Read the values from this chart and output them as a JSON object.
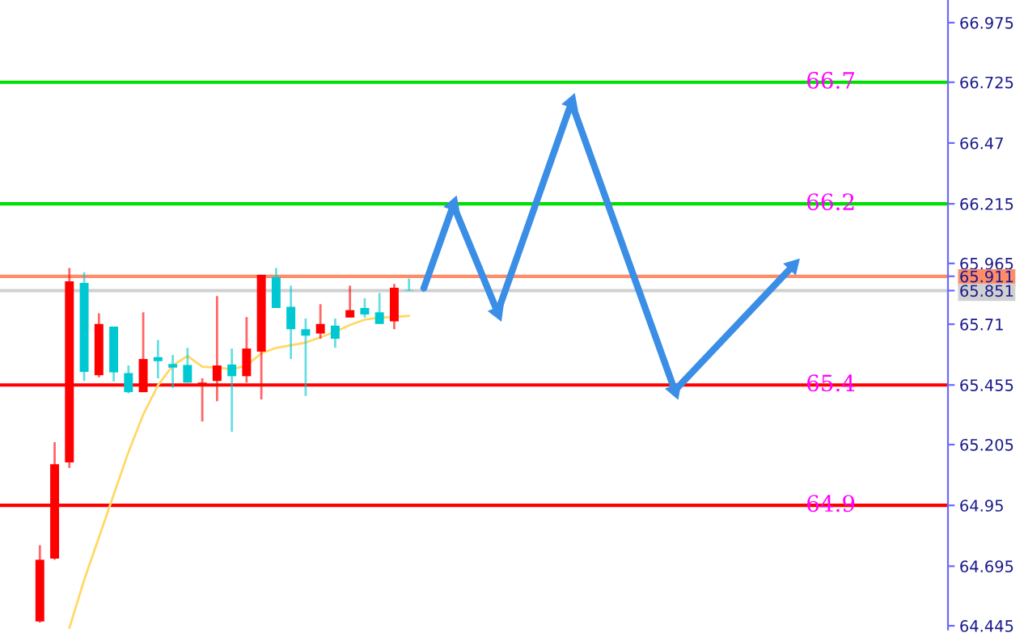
{
  "chart_data": {
    "type": "candlestick",
    "categories": [
      null,
      null,
      null,
      null,
      null,
      null,
      null,
      null,
      null,
      null,
      null,
      null,
      null,
      null,
      null,
      null,
      null,
      null,
      null,
      null,
      null,
      null,
      null,
      null,
      null,
      null,
      null,
      null,
      null,
      null,
      null,
      null,
      null,
      null,
      null,
      null,
      null,
      null,
      null,
      null,
      null,
      null,
      null,
      null,
      null,
      null,
      null,
      null,
      null,
      null,
      null,
      null,
      null,
      null,
      null,
      null,
      null,
      null,
      null,
      null,
      null,
      null,
      null
    ],
    "ohlc": [
      null,
      [
        64.463,
        64.783,
        64.458,
        64.722
      ],
      [
        64.727,
        65.215,
        64.722,
        65.123
      ],
      [
        65.13,
        65.946,
        65.107,
        65.89
      ],
      [
        65.883,
        65.928,
        65.472,
        65.51
      ],
      [
        65.496,
        65.756,
        65.487,
        65.711
      ],
      [
        65.7,
        65.7,
        65.47,
        65.508
      ],
      [
        65.505,
        65.537,
        65.42,
        65.425
      ],
      [
        65.425,
        65.76,
        65.425,
        65.564
      ],
      [
        65.572,
        65.644,
        65.483,
        65.555
      ],
      [
        65.543,
        65.581,
        65.443,
        65.528
      ],
      [
        65.539,
        65.611,
        65.465,
        65.465
      ],
      [
        65.456,
        65.483,
        65.302,
        65.465
      ],
      [
        65.472,
        65.828,
        65.387,
        65.537
      ],
      [
        65.541,
        65.608,
        65.259,
        65.492
      ],
      [
        65.492,
        65.74,
        65.465,
        65.608
      ],
      [
        65.595,
        65.917,
        65.394,
        65.917
      ],
      [
        65.908,
        65.946,
        65.778,
        65.778
      ],
      [
        65.783,
        65.872,
        65.564,
        65.689
      ],
      [
        65.689,
        65.734,
        65.409,
        65.662
      ],
      [
        65.671,
        65.794,
        65.649,
        65.711
      ],
      [
        65.704,
        65.734,
        65.611,
        65.649
      ],
      [
        65.738,
        65.872,
        65.738,
        65.769
      ],
      [
        65.778,
        65.819,
        65.738,
        65.751
      ],
      [
        65.76,
        65.841,
        65.711,
        65.711
      ],
      [
        65.722,
        65.879,
        65.689,
        65.863
      ],
      [
        65.853,
        65.901,
        65.851,
        65.851
      ],
      null,
      null,
      null,
      null,
      null,
      null,
      null,
      null,
      null,
      null,
      null,
      null,
      null,
      null,
      null,
      null,
      null,
      null,
      null,
      null,
      null,
      null,
      null,
      null,
      null,
      null,
      null,
      null,
      null,
      null,
      null,
      null,
      null,
      null,
      null,
      null
    ],
    "colors": [
      null,
      "#ff0000",
      "#ff0000",
      "#ff0000",
      "#00c8d2",
      "#ff0000",
      "#00c8d2",
      "#00c8d2",
      "#ff0000",
      "#00c8d2",
      "#00c8d2",
      "#00c8d2",
      "#ff0000",
      "#ff0000",
      "#00c8d2",
      "#ff0000",
      "#ff0000",
      "#00c8d2",
      "#00c8d2",
      "#00c8d2",
      "#ff0000",
      "#00c8d2",
      "#ff0000",
      "#00c8d2",
      "#00c8d2",
      "#ff0000",
      "#00c8d2",
      null,
      null,
      null,
      null,
      null,
      null,
      null,
      null,
      null,
      null,
      null,
      null,
      null,
      null,
      null,
      null,
      null,
      null,
      null,
      null,
      null,
      null,
      null,
      null,
      null,
      null,
      null,
      null,
      null,
      null,
      null,
      null,
      null,
      null,
      null,
      null
    ],
    "series": [
      {
        "type": "line",
        "color": "#ffd966",
        "values": [
          null,
          null,
          null,
          64.436,
          64.637,
          64.816,
          64.995,
          65.174,
          65.331,
          65.454,
          65.537,
          65.577,
          65.532,
          65.528,
          65.521,
          65.537,
          65.588,
          65.611,
          65.622,
          65.633,
          65.655,
          65.678,
          65.707,
          65.729,
          65.738,
          65.74,
          65.745,
          null,
          null,
          null,
          null,
          null,
          null,
          null,
          null,
          null,
          null,
          null,
          null,
          null,
          null,
          null,
          null,
          null,
          null,
          null,
          null,
          null,
          null,
          null,
          null,
          null,
          null,
          null,
          null,
          null,
          null,
          null,
          null,
          null,
          null,
          null,
          null
        ]
      },
      {
        "type": "line",
        "color": "#3a8ee6",
        "marker": "triangle",
        "values": [
          null,
          null,
          null,
          null,
          null,
          null,
          null,
          null,
          null,
          null,
          null,
          null,
          null,
          null,
          null,
          null,
          null,
          null,
          null,
          null,
          null,
          null,
          null,
          null,
          null,
          null,
          null,
          65.861,
          null,
          66.21,
          null,
          null,
          65.76,
          null,
          null,
          null,
          null,
          66.64,
          null,
          null,
          null,
          null,
          null,
          null,
          65.432,
          null,
          null,
          null,
          null,
          null,
          null,
          null,
          65.955,
          null,
          null,
          null,
          null,
          null,
          null,
          null,
          null,
          null,
          null
        ]
      }
    ],
    "ylim": [
      64.43,
      67.07
    ],
    "yticks": [
      66.975,
      66.725,
      66.47,
      66.215,
      65.965,
      {
        "value": 65.911,
        "label": "65.911"
      },
      {
        "value": 65.851,
        "label": "65.851"
      },
      65.71,
      65.455,
      65.205,
      64.95,
      64.695,
      64.445
    ],
    "ref_lines": [
      {
        "axis": "y",
        "value": 66.725,
        "color": "#00e000"
      },
      {
        "axis": "y",
        "value": 66.215,
        "color": "#00e000"
      },
      {
        "axis": "y",
        "value": 65.911,
        "color": "#ff8c69"
      },
      {
        "axis": "y",
        "value": 65.851,
        "color": "#d0d0d0"
      },
      {
        "axis": "y",
        "value": 65.455,
        "color": "#ff0000"
      },
      {
        "axis": "y",
        "value": 64.95,
        "color": "#ff0000"
      }
    ],
    "annotations": [
      "66.7",
      "66.2",
      null,
      null,
      "65.4",
      "64.9"
    ],
    "grid": false,
    "legend": false
  }
}
